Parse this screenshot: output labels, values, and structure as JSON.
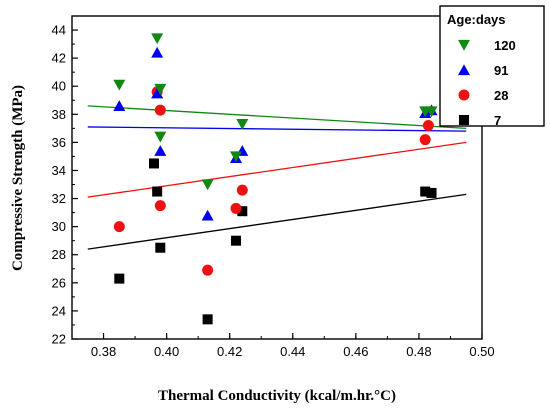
{
  "chart_data": {
    "type": "scatter",
    "title": "",
    "xlabel": "Thermal Conductivity (kcal/m.hr.°C)",
    "ylabel": "Compressive Strength (MPa)",
    "xlim": [
      0.37,
      0.5
    ],
    "ylim": [
      22,
      45
    ],
    "xticks": [
      "0.38",
      "0.40",
      "0.42",
      "0.44",
      "0.46",
      "0.48",
      "0.50"
    ],
    "yticks": [
      "22",
      "24",
      "26",
      "28",
      "30",
      "32",
      "34",
      "36",
      "38",
      "40",
      "42",
      "44"
    ],
    "grid": false,
    "legend": {
      "title": "Age:days",
      "placement": "top-right"
    },
    "series": [
      {
        "name": "120",
        "marker": "triangle-down",
        "color": "#118811",
        "points": [
          [
            0.385,
            40.1
          ],
          [
            0.397,
            43.4
          ],
          [
            0.398,
            39.8
          ],
          [
            0.398,
            36.4
          ],
          [
            0.413,
            33.0
          ],
          [
            0.422,
            35.0
          ],
          [
            0.424,
            37.3
          ],
          [
            0.482,
            38.2
          ],
          [
            0.484,
            38.2
          ]
        ],
        "trend": [
          [
            0.375,
            38.6
          ],
          [
            0.495,
            37.0
          ]
        ]
      },
      {
        "name": "91",
        "marker": "triangle-up",
        "color": "#0000ee",
        "points": [
          [
            0.385,
            38.6
          ],
          [
            0.397,
            42.4
          ],
          [
            0.397,
            39.5
          ],
          [
            0.398,
            35.4
          ],
          [
            0.413,
            30.8
          ],
          [
            0.422,
            34.9
          ],
          [
            0.424,
            35.4
          ],
          [
            0.482,
            38.1
          ],
          [
            0.484,
            38.3
          ]
        ],
        "trend": [
          [
            0.375,
            37.1
          ],
          [
            0.495,
            36.8
          ]
        ]
      },
      {
        "name": "28",
        "marker": "circle",
        "color": "#ee1111",
        "points": [
          [
            0.385,
            30.0
          ],
          [
            0.397,
            39.6
          ],
          [
            0.398,
            38.3
          ],
          [
            0.398,
            31.5
          ],
          [
            0.413,
            26.9
          ],
          [
            0.422,
            31.3
          ],
          [
            0.424,
            32.6
          ],
          [
            0.482,
            36.2
          ],
          [
            0.483,
            37.2
          ]
        ],
        "trend": [
          [
            0.375,
            32.1
          ],
          [
            0.495,
            36.0
          ]
        ]
      },
      {
        "name": "7",
        "marker": "square",
        "color": "#000000",
        "points": [
          [
            0.385,
            26.3
          ],
          [
            0.396,
            34.5
          ],
          [
            0.397,
            32.5
          ],
          [
            0.398,
            28.5
          ],
          [
            0.413,
            23.4
          ],
          [
            0.422,
            29.0
          ],
          [
            0.424,
            31.1
          ],
          [
            0.482,
            32.5
          ],
          [
            0.484,
            32.4
          ]
        ],
        "trend": [
          [
            0.375,
            28.4
          ],
          [
            0.495,
            32.3
          ]
        ]
      }
    ]
  }
}
